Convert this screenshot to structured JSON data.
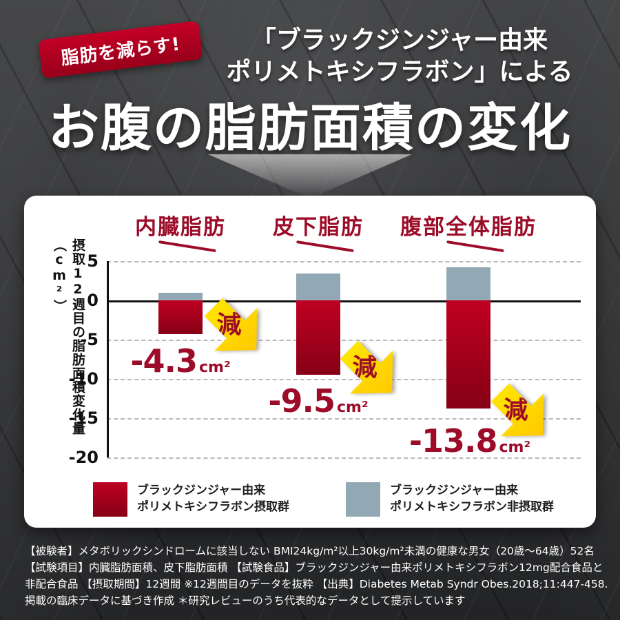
{
  "badge": {
    "label": "脂肪を減らす!"
  },
  "header": {
    "subtitle_line1": "「ブラックジンジャー由来",
    "subtitle_line2": "ポリメトキシフラボン」による",
    "title": "お腹の脂肪面積の変化"
  },
  "chart_data": {
    "type": "bar",
    "title": "お腹の脂肪面積の変化",
    "ylabel": "摂取12週目の脂肪面積変化量（cm²）",
    "ylim": [
      -20,
      5
    ],
    "yticks": [
      5,
      0,
      -5,
      -10,
      -15,
      -20
    ],
    "grid": "dashed horizontal, solid zero line",
    "legend_position": "bottom",
    "categories": [
      "内臓脂肪",
      "皮下脂肪",
      "腹部全体脂肪"
    ],
    "series": [
      {
        "name": "ブラックジンジャー由来ポリメトキシフラボン摂取群",
        "color": "#b10021",
        "values": [
          -4.3,
          -9.5,
          -13.8
        ]
      },
      {
        "name": "ブラックジンジャー由来ポリメトキシフラボン非摂取群",
        "color": "#92a9b5",
        "values": [
          1.0,
          3.4,
          4.2
        ]
      }
    ],
    "annotations": [
      {
        "badge": "減",
        "value": "-4.3",
        "unit": "cm²"
      },
      {
        "badge": "減",
        "value": "-9.5",
        "unit": "cm²"
      },
      {
        "badge": "減",
        "value": "-13.8",
        "unit": "cm²"
      }
    ]
  },
  "legend": {
    "items": [
      {
        "color": "#b10021",
        "line1": "ブラックジンジャー由来",
        "line2": "ポリメトキシフラボン摂取群"
      },
      {
        "color": "#92a9b5",
        "line1": "ブラックジンジャー由来",
        "line2": "ポリメトキシフラボン非摂取群"
      }
    ]
  },
  "footnote": {
    "lines": [
      "【被験者】メタボリックシンドロームに該当しない BMI24kg/m²以上30kg/m²未満の健康な男女（20歳～64歳）52名",
      "【試験項目】内臓脂肪面積、皮下脂肪面積 【試験食品】ブラックジンジャー由来ポリメトキシフラボン12mg配合食品と",
      "非配合食品 【摂取期間】12週間 ※12週間目のデータを抜粋 【出典】Diabetes Metab Syndr Obes.2018;11:447-458.",
      "掲載の臨床データに基づき作成 ＊研究レビューのうち代表的なデータとして提示しています"
    ]
  },
  "colors": {
    "intake_red": "#b10021",
    "non_intake_gray": "#92a9b5",
    "accent_yellow": "#ffd900",
    "heading_red": "#9c0c28",
    "background_dark": "#2c2d2f"
  }
}
